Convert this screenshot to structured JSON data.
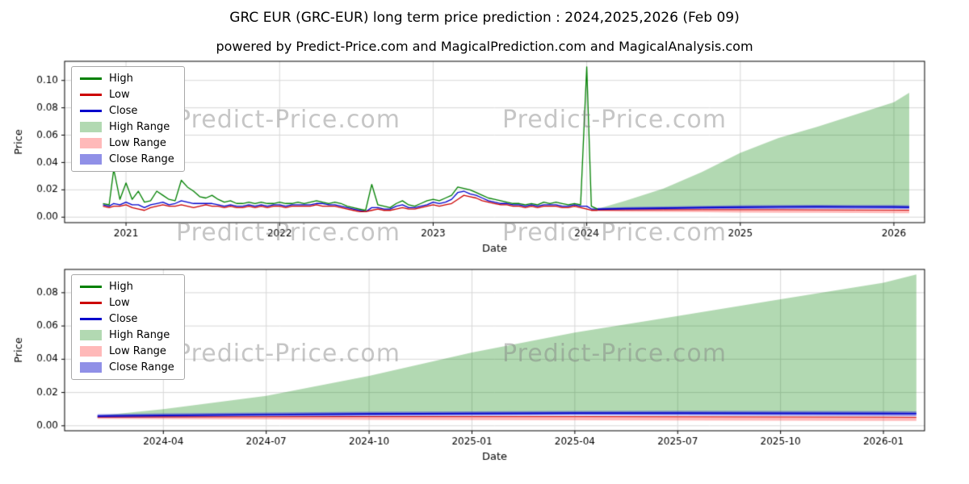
{
  "title": "GRC EUR (GRC-EUR) long term price prediction : 2024,2025,2026 (Feb 09)",
  "subtitle": "powered by Predict-Price.com and MagicalPrediction.com and MagicalAnalysis.com",
  "watermark": "Predict-Price.com",
  "colors": {
    "high": "#008000",
    "low": "#cc0000",
    "close": "#0000cc",
    "high_range": "rgba(0,128,0,0.3)",
    "low_range": "rgba(255,99,99,0.45)",
    "close_range": "rgba(70,70,215,0.6)",
    "grid": "#d8d8d8",
    "axis": "#000000"
  },
  "legend": {
    "position": "upper left",
    "items": [
      {
        "label": "High",
        "swatch": "line",
        "color": "#008000"
      },
      {
        "label": "Low",
        "swatch": "line",
        "color": "#cc0000"
      },
      {
        "label": "Close",
        "swatch": "line",
        "color": "#0000cc"
      },
      {
        "label": "High Range",
        "swatch": "patch",
        "color": "rgba(0,128,0,0.3)"
      },
      {
        "label": "Low Range",
        "swatch": "patch",
        "color": "rgba(255,99,99,0.45)"
      },
      {
        "label": "Close Range",
        "swatch": "patch",
        "color": "rgba(70,70,215,0.6)"
      }
    ]
  },
  "chart_data": [
    {
      "type": "line",
      "xlabel": "Date",
      "ylabel": "Price",
      "grid": true,
      "xlim": [
        2020.6,
        2026.2
      ],
      "ylim": [
        -0.004,
        0.114
      ],
      "yticks": [
        0.0,
        0.02,
        0.04,
        0.06,
        0.08,
        0.1
      ],
      "xticks": [
        {
          "v": 2021,
          "label": "2021"
        },
        {
          "v": 2022,
          "label": "2022"
        },
        {
          "v": 2023,
          "label": "2023"
        },
        {
          "v": 2024,
          "label": "2024"
        },
        {
          "v": 2025,
          "label": "2025"
        },
        {
          "v": 2026,
          "label": "2026"
        }
      ],
      "history": [
        [
          2020.85,
          0.01,
          0.008,
          0.009
        ],
        [
          2020.89,
          0.009,
          0.007,
          0.008
        ],
        [
          2020.92,
          0.035,
          0.008,
          0.01
        ],
        [
          2020.96,
          0.013,
          0.008,
          0.009
        ],
        [
          2021.0,
          0.025,
          0.009,
          0.011
        ],
        [
          2021.04,
          0.013,
          0.007,
          0.009
        ],
        [
          2021.08,
          0.019,
          0.006,
          0.009
        ],
        [
          2021.12,
          0.011,
          0.005,
          0.007
        ],
        [
          2021.16,
          0.012,
          0.007,
          0.009
        ],
        [
          2021.2,
          0.019,
          0.008,
          0.01
        ],
        [
          2021.24,
          0.016,
          0.009,
          0.011
        ],
        [
          2021.28,
          0.013,
          0.008,
          0.009
        ],
        [
          2021.32,
          0.012,
          0.008,
          0.01
        ],
        [
          2021.36,
          0.027,
          0.009,
          0.012
        ],
        [
          2021.4,
          0.022,
          0.008,
          0.011
        ],
        [
          2021.44,
          0.019,
          0.007,
          0.01
        ],
        [
          2021.48,
          0.015,
          0.008,
          0.01
        ],
        [
          2021.52,
          0.014,
          0.009,
          0.01
        ],
        [
          2021.56,
          0.016,
          0.008,
          0.01
        ],
        [
          2021.6,
          0.013,
          0.008,
          0.009
        ],
        [
          2021.64,
          0.011,
          0.007,
          0.008
        ],
        [
          2021.68,
          0.012,
          0.008,
          0.009
        ],
        [
          2021.72,
          0.01,
          0.007,
          0.008
        ],
        [
          2021.76,
          0.01,
          0.007,
          0.008
        ],
        [
          2021.8,
          0.011,
          0.008,
          0.009
        ],
        [
          2021.84,
          0.01,
          0.007,
          0.008
        ],
        [
          2021.88,
          0.011,
          0.008,
          0.009
        ],
        [
          2021.92,
          0.01,
          0.007,
          0.008
        ],
        [
          2021.96,
          0.01,
          0.008,
          0.009
        ],
        [
          2022.0,
          0.011,
          0.008,
          0.009
        ],
        [
          2022.04,
          0.01,
          0.007,
          0.008
        ],
        [
          2022.08,
          0.01,
          0.008,
          0.009
        ],
        [
          2022.12,
          0.011,
          0.008,
          0.009
        ],
        [
          2022.16,
          0.01,
          0.008,
          0.009
        ],
        [
          2022.2,
          0.011,
          0.008,
          0.009
        ],
        [
          2022.24,
          0.012,
          0.009,
          0.01
        ],
        [
          2022.28,
          0.011,
          0.008,
          0.01
        ],
        [
          2022.32,
          0.01,
          0.008,
          0.009
        ],
        [
          2022.36,
          0.011,
          0.008,
          0.009
        ],
        [
          2022.4,
          0.01,
          0.007,
          0.008
        ],
        [
          2022.44,
          0.008,
          0.006,
          0.007
        ],
        [
          2022.48,
          0.007,
          0.005,
          0.006
        ],
        [
          2022.52,
          0.006,
          0.004,
          0.005
        ],
        [
          2022.56,
          0.005,
          0.004,
          0.004
        ],
        [
          2022.6,
          0.024,
          0.005,
          0.007
        ],
        [
          2022.64,
          0.009,
          0.006,
          0.007
        ],
        [
          2022.68,
          0.008,
          0.005,
          0.006
        ],
        [
          2022.72,
          0.007,
          0.005,
          0.006
        ],
        [
          2022.76,
          0.01,
          0.006,
          0.008
        ],
        [
          2022.8,
          0.012,
          0.007,
          0.009
        ],
        [
          2022.84,
          0.009,
          0.006,
          0.007
        ],
        [
          2022.88,
          0.008,
          0.006,
          0.007
        ],
        [
          2022.92,
          0.01,
          0.007,
          0.008
        ],
        [
          2022.96,
          0.012,
          0.008,
          0.009
        ],
        [
          2023.0,
          0.013,
          0.009,
          0.011
        ],
        [
          2023.04,
          0.012,
          0.008,
          0.01
        ],
        [
          2023.08,
          0.014,
          0.009,
          0.011
        ],
        [
          2023.12,
          0.016,
          0.01,
          0.013
        ],
        [
          2023.16,
          0.022,
          0.013,
          0.018
        ],
        [
          2023.2,
          0.021,
          0.016,
          0.019
        ],
        [
          2023.24,
          0.02,
          0.015,
          0.017
        ],
        [
          2023.28,
          0.018,
          0.014,
          0.016
        ],
        [
          2023.32,
          0.016,
          0.012,
          0.014
        ],
        [
          2023.36,
          0.014,
          0.011,
          0.012
        ],
        [
          2023.4,
          0.013,
          0.01,
          0.011
        ],
        [
          2023.44,
          0.012,
          0.009,
          0.01
        ],
        [
          2023.48,
          0.011,
          0.009,
          0.01
        ],
        [
          2023.52,
          0.01,
          0.008,
          0.009
        ],
        [
          2023.56,
          0.01,
          0.008,
          0.009
        ],
        [
          2023.6,
          0.009,
          0.007,
          0.008
        ],
        [
          2023.64,
          0.01,
          0.008,
          0.009
        ],
        [
          2023.68,
          0.009,
          0.007,
          0.008
        ],
        [
          2023.72,
          0.011,
          0.008,
          0.009
        ],
        [
          2023.76,
          0.01,
          0.008,
          0.009
        ],
        [
          2023.8,
          0.011,
          0.008,
          0.009
        ],
        [
          2023.84,
          0.01,
          0.007,
          0.008
        ],
        [
          2023.88,
          0.009,
          0.007,
          0.008
        ],
        [
          2023.92,
          0.01,
          0.008,
          0.009
        ],
        [
          2023.96,
          0.009,
          0.007,
          0.008
        ],
        [
          2024.0,
          0.11,
          0.006,
          0.008
        ],
        [
          2024.03,
          0.008,
          0.005,
          0.006
        ],
        [
          2024.07,
          0.006,
          0.005,
          0.006
        ]
      ],
      "forecast": {
        "x": [
          2024.07,
          2024.25,
          2024.5,
          2024.75,
          2025.0,
          2025.25,
          2025.5,
          2025.75,
          2026.0,
          2026.1
        ],
        "high_range_upper": [
          0.006,
          0.012,
          0.021,
          0.033,
          0.047,
          0.058,
          0.066,
          0.075,
          0.084,
          0.091
        ],
        "close": [
          0.0058,
          0.0062,
          0.0066,
          0.007,
          0.0073,
          0.0075,
          0.0076,
          0.0075,
          0.0074,
          0.0073
        ],
        "close_range_upper": [
          0.0068,
          0.0073,
          0.0078,
          0.0083,
          0.0087,
          0.0089,
          0.009,
          0.0089,
          0.0088,
          0.0087
        ],
        "close_range_lower": [
          0.0048,
          0.0051,
          0.0054,
          0.0057,
          0.0059,
          0.0061,
          0.0062,
          0.0061,
          0.006,
          0.0059
        ],
        "low": [
          0.0052,
          0.0053,
          0.0054,
          0.0055,
          0.0055,
          0.0055,
          0.0054,
          0.0053,
          0.0052,
          0.0051
        ],
        "low_range_lower": [
          0.0042,
          0.004,
          0.0038,
          0.0036,
          0.0034,
          0.0033,
          0.0032,
          0.0031,
          0.003,
          0.0029
        ]
      }
    },
    {
      "type": "line",
      "xlabel": "Date",
      "ylabel": "Price",
      "grid": true,
      "xlim": [
        2024.01,
        2026.1
      ],
      "ylim": [
        -0.003,
        0.094
      ],
      "yticks": [
        0.0,
        0.02,
        0.04,
        0.06,
        0.08
      ],
      "xticks": [
        {
          "v": 2024.25,
          "label": "2024-04"
        },
        {
          "v": 2024.5,
          "label": "2024-07"
        },
        {
          "v": 2024.75,
          "label": "2024-10"
        },
        {
          "v": 2025.0,
          "label": "2025-01"
        },
        {
          "v": 2025.25,
          "label": "2025-04"
        },
        {
          "v": 2025.5,
          "label": "2025-07"
        },
        {
          "v": 2025.75,
          "label": "2025-10"
        },
        {
          "v": 2026.0,
          "label": "2026-01"
        }
      ],
      "forecast": {
        "x": [
          2024.09,
          2024.25,
          2024.5,
          2024.75,
          2025.0,
          2025.25,
          2025.5,
          2025.75,
          2026.0,
          2026.08
        ],
        "high_range_upper": [
          0.006,
          0.01,
          0.018,
          0.03,
          0.044,
          0.056,
          0.066,
          0.076,
          0.086,
          0.091
        ],
        "close": [
          0.0058,
          0.0062,
          0.0067,
          0.0071,
          0.0074,
          0.0076,
          0.0076,
          0.0075,
          0.0074,
          0.0073
        ],
        "close_range_upper": [
          0.0069,
          0.0074,
          0.0079,
          0.0084,
          0.0087,
          0.0089,
          0.009,
          0.0089,
          0.0088,
          0.0087
        ],
        "close_range_lower": [
          0.0047,
          0.005,
          0.0055,
          0.0058,
          0.0061,
          0.0063,
          0.0062,
          0.0061,
          0.006,
          0.0059
        ],
        "low": [
          0.0052,
          0.0053,
          0.0054,
          0.0055,
          0.0055,
          0.0055,
          0.0054,
          0.0053,
          0.0052,
          0.0051
        ],
        "low_range_lower": [
          0.0042,
          0.004,
          0.0038,
          0.0036,
          0.0034,
          0.0033,
          0.0032,
          0.0031,
          0.003,
          0.0029
        ]
      }
    }
  ]
}
